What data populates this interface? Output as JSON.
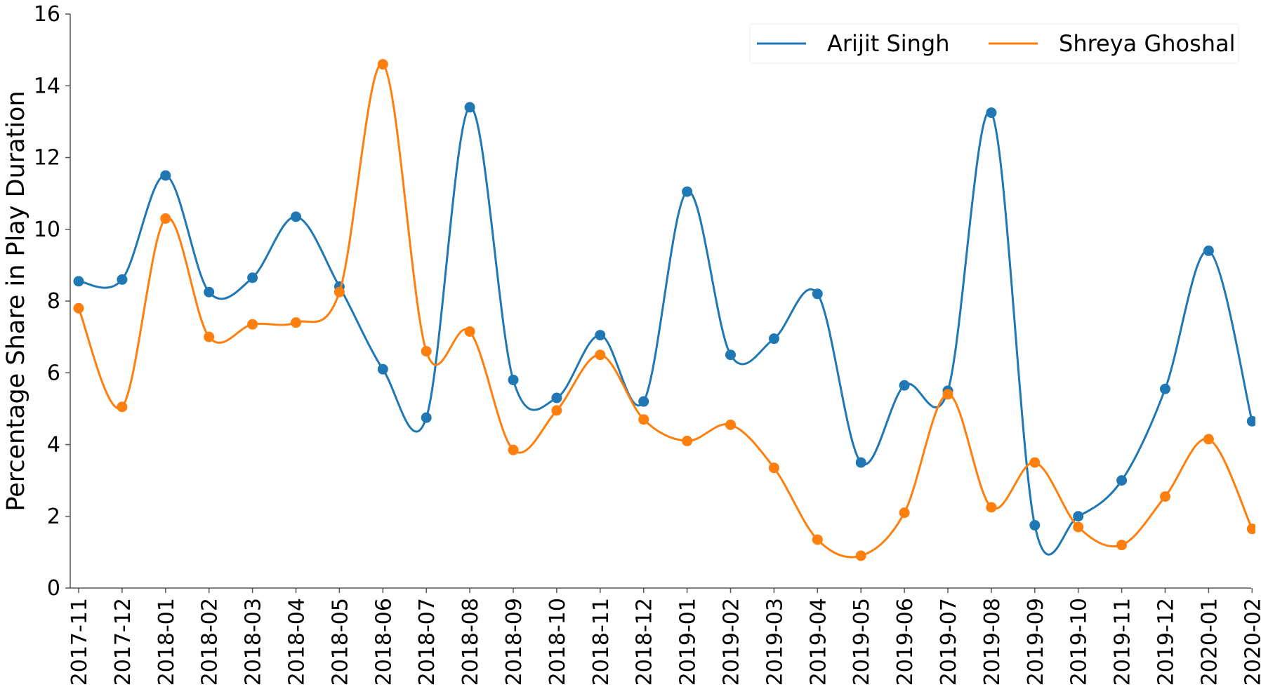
{
  "chart_data": {
    "type": "line",
    "title": "",
    "xlabel": "",
    "ylabel": "Percentage Share in Play Duration",
    "ylim": [
      0,
      16
    ],
    "yticks": [
      "0",
      "2",
      "4",
      "6",
      "8",
      "10",
      "12",
      "14",
      "16"
    ],
    "grid": false,
    "smooth": true,
    "markers": true,
    "legend_position": "top-right",
    "categories": [
      "2017-11",
      "2017-12",
      "2018-01",
      "2018-02",
      "2018-03",
      "2018-04",
      "2018-05",
      "2018-06",
      "2018-07",
      "2018-08",
      "2018-09",
      "2018-10",
      "2018-11",
      "2018-12",
      "2019-01",
      "2019-02",
      "2019-03",
      "2019-04",
      "2019-05",
      "2019-06",
      "2019-07",
      "2019-08",
      "2019-09",
      "2019-10",
      "2019-11",
      "2019-12",
      "2020-01",
      "2020-02"
    ],
    "series": [
      {
        "name": "Arijit Singh",
        "color": "#1f77b4",
        "values": [
          8.55,
          8.6,
          11.5,
          8.25,
          8.65,
          10.35,
          8.4,
          6.1,
          4.75,
          13.4,
          5.8,
          5.3,
          7.05,
          5.2,
          11.05,
          6.5,
          6.95,
          8.2,
          3.5,
          5.65,
          5.5,
          13.25,
          1.75,
          2.0,
          3.0,
          5.55,
          9.4,
          4.65
        ]
      },
      {
        "name": "Shreya Ghoshal",
        "color": "#ff7f0e",
        "values": [
          7.8,
          5.05,
          10.3,
          7.0,
          7.35,
          7.4,
          8.25,
          14.6,
          6.6,
          7.15,
          3.85,
          4.95,
          6.5,
          4.7,
          4.1,
          4.55,
          3.35,
          1.35,
          0.9,
          2.1,
          5.4,
          2.25,
          3.5,
          1.7,
          1.2,
          2.55,
          4.15,
          1.65
        ]
      }
    ]
  }
}
